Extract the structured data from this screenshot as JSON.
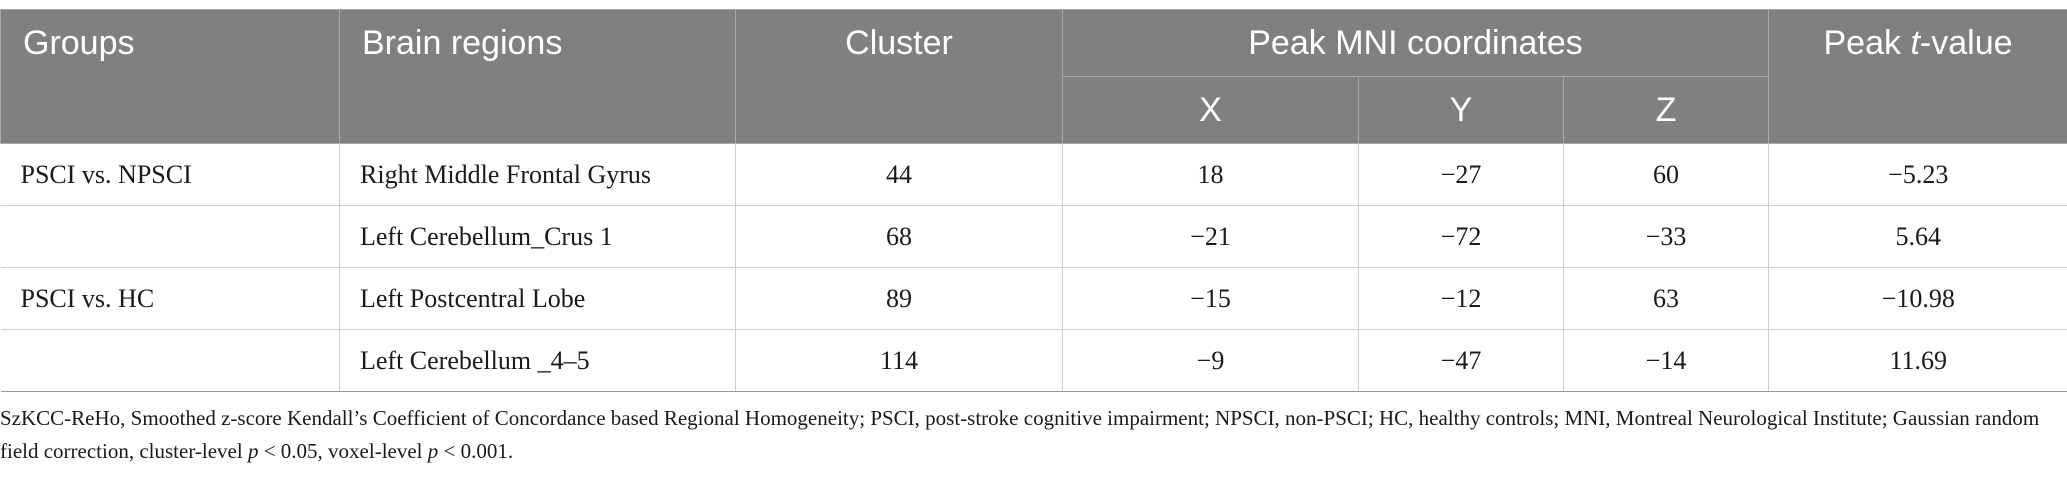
{
  "table": {
    "headers": {
      "groups": "Groups",
      "brain_regions": "Brain regions",
      "cluster": "Cluster",
      "peak_mni": "Peak MNI coordinates",
      "x": "X",
      "y": "Y",
      "z": "Z",
      "peak_t_prefix": "Peak ",
      "peak_t_italic": "t",
      "peak_t_suffix": "-value"
    },
    "rows": [
      {
        "group": "PSCI vs. NPSCI",
        "region": "Right Middle Frontal Gyrus",
        "cluster": "44",
        "x": "18",
        "y": "−27",
        "z": "60",
        "t": "−5.23"
      },
      {
        "group": "",
        "region": "Left Cerebellum_Crus 1",
        "cluster": "68",
        "x": "−21",
        "y": "−72",
        "z": "−33",
        "t": "5.64"
      },
      {
        "group": "PSCI vs. HC",
        "region": "Left Postcentral Lobe",
        "cluster": "89",
        "x": "−15",
        "y": "−12",
        "z": "63",
        "t": "−10.98"
      },
      {
        "group": "",
        "region": "Left Cerebellum _4–5",
        "cluster": "114",
        "x": "−9",
        "y": "−47",
        "z": "−14",
        "t": "11.69"
      }
    ]
  },
  "footnote": {
    "part1": "SzKCC-ReHo, Smoothed z-score Kendall’s Coefficient of Concordance based Regional Homogeneity; PSCI, post-stroke cognitive impairment; NPSCI, non-PSCI; HC, healthy controls; MNI, Montreal Neurological Institute; Gaussian random field correction, cluster-level ",
    "p1": "p",
    "part2": " < 0.05, voxel-level ",
    "p2": "p",
    "part3": " < 0.001."
  }
}
